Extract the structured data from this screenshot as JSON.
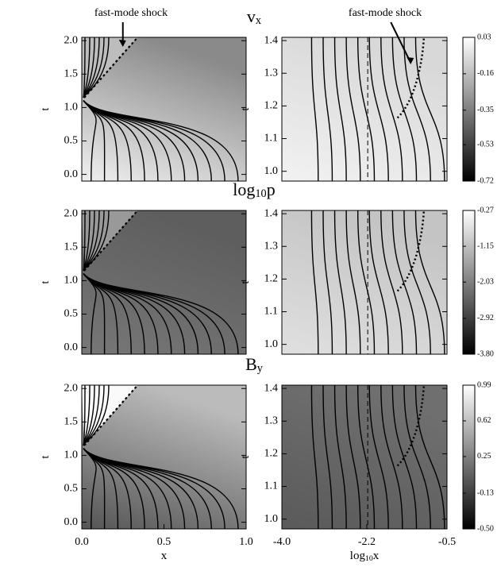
{
  "chart_data": [
    {
      "type": "contour",
      "title": {
        "base": "v",
        "subscript": "x"
      },
      "annotation": "fast-mode shock",
      "ylabel": "t",
      "ylim": [
        -0.1,
        2.05
      ],
      "yticks": [
        {
          "value": 0,
          "label": "0.0"
        },
        0.5,
        {
          "value": 1,
          "label": "1.0"
        },
        1.5,
        {
          "value": 2,
          "label": "2.0"
        }
      ]
    },
    {
      "type": "contour",
      "annotation": "fast-mode shock",
      "ylabel": "t",
      "ylim": [
        0.97,
        1.41
      ],
      "yticks": [
        {
          "value": 1,
          "label": "1.0"
        },
        1.1,
        1.2,
        1.3,
        1.4
      ],
      "colorbar": {
        "zlim": [
          -0.72,
          0.03
        ],
        "ticks": [
          0.03,
          -0.16,
          -0.35,
          -0.53,
          -0.72
        ]
      }
    },
    {
      "type": "contour",
      "title": {
        "base": "log",
        "subscript": "10",
        "rest": "p"
      },
      "ylabel": "t",
      "ylim": [
        -0.1,
        2.05
      ],
      "yticks": [
        {
          "value": 0,
          "label": "0.0"
        },
        0.5,
        {
          "value": 1,
          "label": "1.0"
        },
        1.5,
        {
          "value": 2,
          "label": "2.0"
        }
      ]
    },
    {
      "type": "contour",
      "ylabel": "t",
      "ylim": [
        0.97,
        1.41
      ],
      "yticks": [
        {
          "value": 1,
          "label": "1.0"
        },
        1.1,
        1.2,
        1.3,
        1.4
      ],
      "colorbar": {
        "zlim": [
          -3.8,
          -0.27
        ],
        "ticks": [
          -0.27,
          -1.15,
          -2.03,
          -2.92,
          {
            "value": -3.8,
            "label": "-3.80"
          }
        ]
      }
    },
    {
      "type": "contour",
      "title": {
        "base": "B",
        "subscript": "y"
      },
      "ylabel": "t",
      "xlabel": {
        "base": "x"
      },
      "xlim": [
        0,
        1
      ],
      "xticks": [
        {
          "value": 0,
          "label": "0.0"
        },
        0.5,
        {
          "value": 1,
          "label": "1.0"
        }
      ],
      "ylim": [
        -0.1,
        2.05
      ],
      "yticks": [
        {
          "value": 0,
          "label": "0.0"
        },
        0.5,
        {
          "value": 1,
          "label": "1.0"
        },
        1.5,
        {
          "value": 2,
          "label": "2.0"
        }
      ]
    },
    {
      "type": "contour",
      "ylabel": "t",
      "xlabel": {
        "base": "log",
        "subscript": "10",
        "rest": "x"
      },
      "xlim": [
        -4,
        -0.5
      ],
      "xticks": [
        {
          "value": -4,
          "label": "-4.0"
        },
        -2.2,
        -0.5
      ],
      "ylim": [
        0.97,
        1.41
      ],
      "yticks": [
        {
          "value": 1,
          "label": "1.0"
        },
        1.1,
        1.2,
        1.3,
        1.4
      ],
      "colorbar": {
        "zlim": [
          -0.5,
          0.99
        ],
        "ticks": [
          0.99,
          0.62,
          0.25,
          -0.13,
          {
            "value": -0.5,
            "label": "-0.50"
          }
        ]
      }
    }
  ]
}
